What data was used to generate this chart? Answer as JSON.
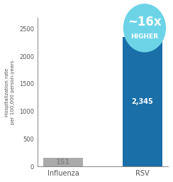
{
  "categories": [
    "Influenza",
    "RSV"
  ],
  "values": [
    151,
    2345
  ],
  "bar_colors": [
    "#aaaaaa",
    "#1a6fa8"
  ],
  "value_labels": [
    "151",
    "2,345"
  ],
  "ylabel_line1": "Hospitalization rate",
  "ylabel_line2": "per 100,000 person-years",
  "ylim": [
    0,
    2700
  ],
  "yticks": [
    0,
    500,
    1000,
    1500,
    2000,
    2500
  ],
  "badge_text_line1": "~16x",
  "badge_text_line2": "HIGHER",
  "badge_color": "#6dd4e8",
  "badge_border_color": "#ffffff",
  "background_color": "#ffffff",
  "label_color_influenza": "#888888",
  "label_color_rsv": "#ffffff",
  "axis_color": "#555555",
  "tick_color": "#555555"
}
